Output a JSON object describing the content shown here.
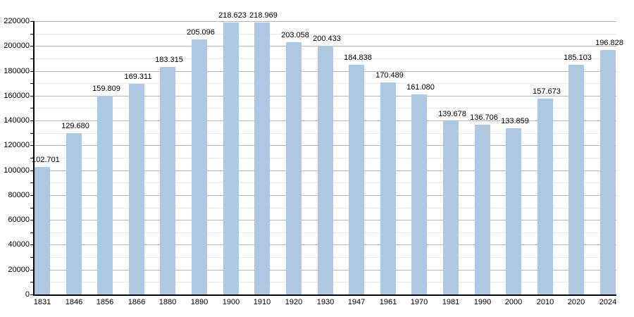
{
  "chart_data": {
    "type": "bar",
    "title": "",
    "xlabel": "",
    "ylabel": "",
    "categories": [
      "1831",
      "1846",
      "1856",
      "1866",
      "1880",
      "1890",
      "1900",
      "1910",
      "1920",
      "1930",
      "1947",
      "1961",
      "1970",
      "1981",
      "1990",
      "2000",
      "2010",
      "2020",
      "2024"
    ],
    "values": [
      102701,
      129680,
      159809,
      169311,
      183315,
      205096,
      218623,
      218969,
      203058,
      200433,
      184838,
      170489,
      161080,
      139678,
      136706,
      133859,
      157673,
      185103,
      196828
    ],
    "value_labels": [
      "102.701",
      "129.680",
      "159.809",
      "169.311",
      "183.315",
      "205.096",
      "218.623",
      "218.969",
      "203.058",
      "200.433",
      "184.838",
      "170.489",
      "161.080",
      "139.678",
      "136.706",
      "133.859",
      "157.673",
      "185.103",
      "196.828"
    ],
    "ylim": [
      0,
      220000
    ],
    "y_tick_step": 20000,
    "y_minor_step": 10000,
    "y_tick_labels": [
      "0",
      "20000",
      "40000",
      "60000",
      "80000",
      "100000",
      "120000",
      "140000",
      "160000",
      "180000",
      "200000",
      "220000"
    ],
    "grid": "horizontal major and minor, on",
    "legend": "none",
    "bar_color": "#aec8e2",
    "axis_color": "#000000",
    "major_grid_color": "#b4b4b4",
    "minor_grid_color": "#e8e8e8",
    "label_color": "#000000"
  }
}
